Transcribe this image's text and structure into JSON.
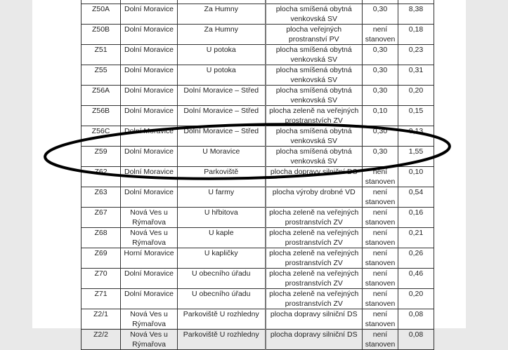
{
  "table": {
    "rows": [
      [
        "",
        "",
        "",
        "",
        "",
        ""
      ],
      [
        "Z50A",
        "Dolní Moravice",
        "Za Humny",
        "plocha smíšená obytná venkovská SV",
        "0,30",
        "8,38"
      ],
      [
        "Z50B",
        "Dolní Moravice",
        "Za Humny",
        "plocha veřejných prostranství PV",
        "není stanoven",
        "0,18"
      ],
      [
        "Z51",
        "Dolní Moravice",
        "U potoka",
        "plocha smíšená obytná venkovská SV",
        "0,30",
        "0,23"
      ],
      [
        "Z55",
        "Dolní Moravice",
        "U potoka",
        "plocha smíšená obytná venkovská SV",
        "0,30",
        "0,31"
      ],
      [
        "Z56A",
        "Dolní Moravice",
        "Dolní Moravice – Střed",
        "plocha smíšená obytná venkovská SV",
        "0,30",
        "0,20"
      ],
      [
        "Z56B",
        "Dolní Moravice",
        "Dolní Moravice – Střed",
        "plocha zeleně na veřejných prostranstvích ZV",
        "0,10",
        "0,15"
      ],
      [
        "Z56C",
        "Dolní Moravice",
        "Dolní Moravice – Střed",
        "plocha smíšená obytná venkovská SV",
        "0,30",
        "0,13"
      ],
      [
        "Z59",
        "Dolní Moravice",
        "U Moravice",
        "plocha smíšená obytná venkovská SV",
        "0,30",
        "1,55"
      ],
      [
        "Z62",
        "Dolní Moravice",
        "Parkoviště",
        "plocha dopravy silniční DS",
        "není stanoven",
        "0,10"
      ],
      [
        "Z63",
        "Dolní Moravice",
        "U farmy",
        "plocha výroby drobné VD",
        "není stanoven",
        "0,54"
      ],
      [
        "Z67",
        "Nová Ves u Rýmařova",
        "U hřbitova",
        "plocha zeleně na veřejných prostranstvích ZV",
        "není stanoven",
        "0,16"
      ],
      [
        "Z68",
        "Nová Ves u Rýmařova",
        "U kaple",
        "plocha zeleně na veřejných prostranstvích ZV",
        "není stanoven",
        "0,21"
      ],
      [
        "Z69",
        "Horní Moravice",
        "U kapličky",
        "plocha zeleně na veřejných prostranstvích ZV",
        "není stanoven",
        "0,26"
      ],
      [
        "Z70",
        "Dolní Moravice",
        "U obecního úřadu",
        "plocha zeleně na veřejných prostranstvích ZV",
        "není stanoven",
        "0,46"
      ],
      [
        "Z71",
        "Dolní Moravice",
        "U obecního úřadu",
        "plocha zeleně na veřejných prostranstvích ZV",
        "není stanoven",
        "0,20"
      ],
      [
        "Z2/1",
        "Nová Ves u Rýmařova",
        "Parkoviště U rozhledny",
        "plocha dopravy silniční DS",
        "není stanoven",
        "0,08"
      ],
      [
        "Z2/2",
        "Nová Ves u Rýmařova",
        "Parkoviště U rozhledny",
        "plocha dopravy silniční DS",
        "není stanoven",
        "0,08"
      ]
    ],
    "highlighted_row": "Z59",
    "highlight_color": "#000000"
  }
}
